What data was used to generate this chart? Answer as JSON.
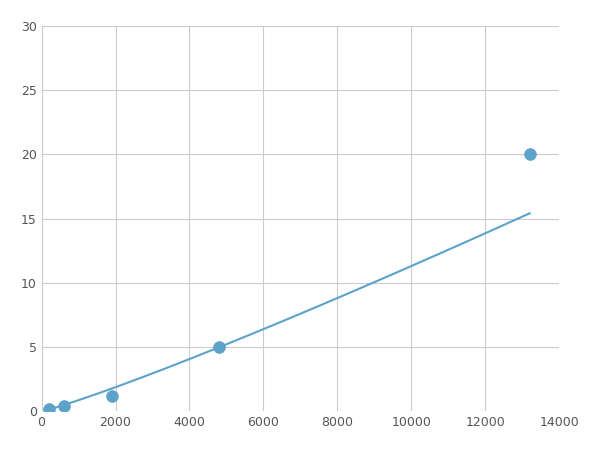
{
  "x_points": [
    200,
    600,
    1900,
    4800,
    13200
  ],
  "y_points": [
    0.2,
    0.4,
    1.2,
    5.0,
    20.0
  ],
  "line_color": "#5BA3C9",
  "marker_color": "#5BA3C9",
  "marker_size": 6,
  "line_width": 1.5,
  "xlim": [
    0,
    14000
  ],
  "ylim": [
    0,
    30
  ],
  "xticks": [
    0,
    2000,
    4000,
    6000,
    8000,
    10000,
    12000,
    14000
  ],
  "yticks": [
    0,
    5,
    10,
    15,
    20,
    25,
    30
  ],
  "grid_color": "#CCCCCC",
  "background_color": "#FFFFFF",
  "figsize": [
    6.0,
    4.5
  ],
  "dpi": 100
}
